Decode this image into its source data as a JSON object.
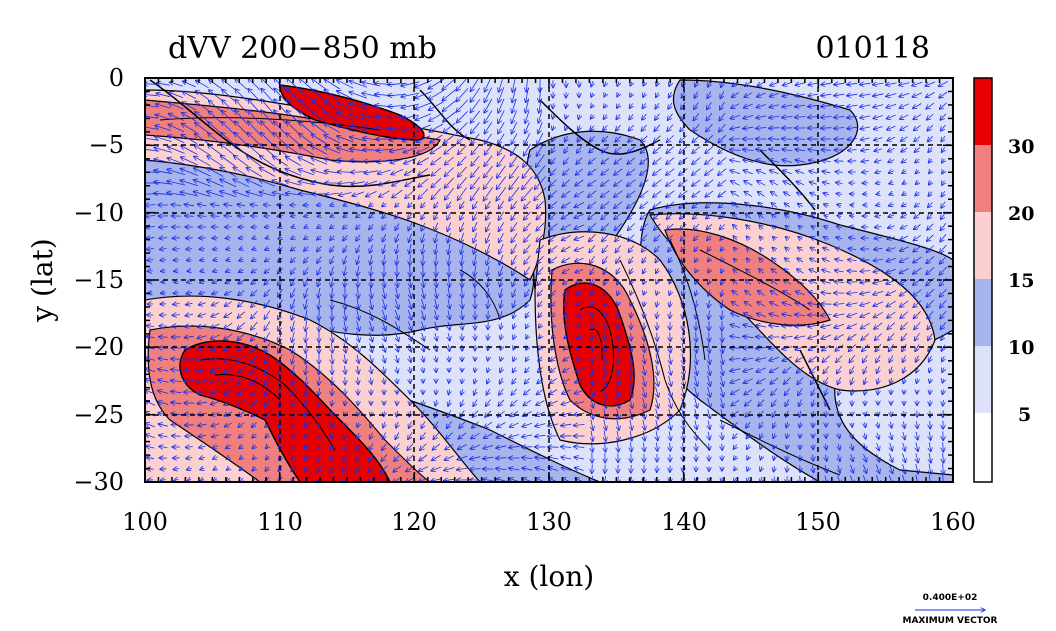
{
  "title": "dVV 200−850 mb",
  "date": "010118",
  "axes": {
    "x_label": "x (lon)",
    "y_label": "y (lat)",
    "x_ticks": [
      "100",
      "110",
      "120",
      "130",
      "140",
      "150",
      "160"
    ],
    "y_ticks": [
      "0",
      "−5",
      "−10",
      "−15",
      "−20",
      "−25",
      "−30"
    ]
  },
  "colorbar": {
    "labels": [
      "30",
      "20",
      "15",
      "10",
      "5"
    ],
    "colors": [
      "#e60000",
      "#f08080",
      "#fbd0d0",
      "#a8b4ee",
      "#dde2fa",
      "#ffffff"
    ]
  },
  "vector_key": {
    "value": "0.400E+02",
    "caption": "MAXIMUM VECTOR"
  },
  "colors": {
    "vector": "#1a2ee0",
    "background_field": "#dde2fa",
    "grid": "#000000"
  },
  "chart_data": {
    "type": "heatmap",
    "xlim": [
      100,
      160
    ],
    "ylim": [
      -30,
      0
    ],
    "grid": true,
    "contour_levels": [
      5,
      10,
      15,
      20,
      30
    ],
    "legend": "right"
  }
}
